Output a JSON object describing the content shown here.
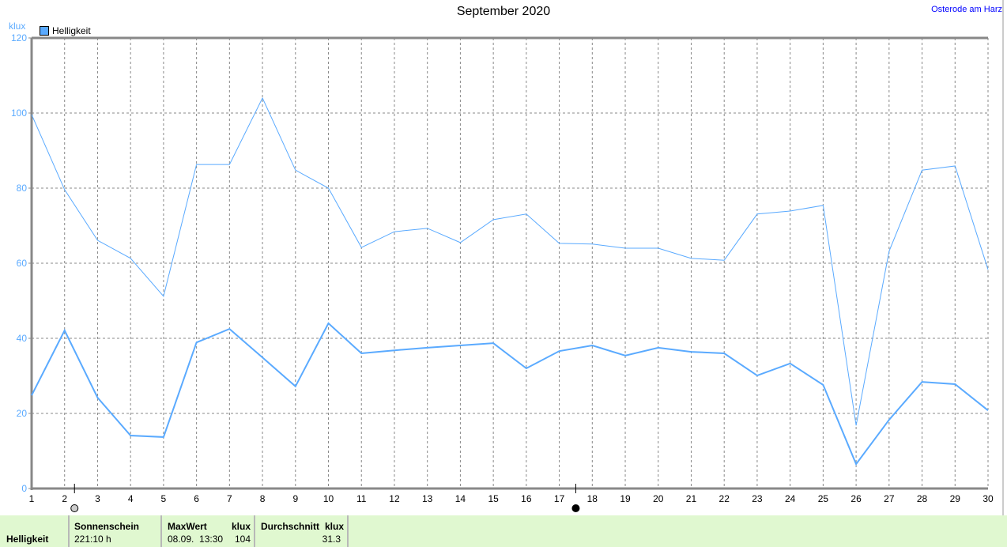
{
  "title": "September 2020",
  "location": "Osterode am Harz",
  "chart_data": {
    "type": "line",
    "title": "September 2020",
    "ylabel": "klux",
    "ylim": [
      0,
      120
    ],
    "yticks": [
      0,
      20,
      40,
      60,
      80,
      100,
      120
    ],
    "xlim": [
      1,
      30
    ],
    "x": [
      1,
      2,
      3,
      4,
      5,
      6,
      7,
      8,
      9,
      10,
      11,
      12,
      13,
      14,
      15,
      16,
      17,
      18,
      19,
      20,
      21,
      22,
      23,
      24,
      25,
      26,
      27,
      28,
      29,
      30
    ],
    "grid": true,
    "legend": {
      "position": "top-left",
      "entries": [
        "Helligkeit"
      ]
    },
    "color": "#5aaaff",
    "series": [
      {
        "name": "Helligkeit",
        "kind": "max",
        "values": [
          99.6,
          79.6,
          66.1,
          61.3,
          51.2,
          86.3,
          86.3,
          104,
          84.8,
          80,
          64.2,
          68.4,
          69.3,
          65.5,
          71.6,
          73.1,
          65.3,
          65.1,
          64,
          64,
          61.3,
          60.8,
          73.1,
          73.9,
          75.4,
          16.8,
          63.2,
          84.8,
          85.9,
          58.3
        ]
      },
      {
        "name": "Helligkeit",
        "kind": "average",
        "values": [
          24.8,
          42.1,
          24.2,
          14.1,
          13.7,
          38.9,
          42.5,
          34.9,
          27.2,
          44,
          36,
          36.8,
          37.5,
          38.1,
          38.7,
          32,
          36.6,
          38.1,
          35.4,
          37.5,
          36.4,
          36,
          30.1,
          33.3,
          27.6,
          6.5,
          18.3,
          28.4,
          27.8,
          20.8
        ]
      }
    ],
    "moon_phases": [
      {
        "day": 2.3,
        "phase": "full-moon"
      },
      {
        "day": 17.5,
        "phase": "new-moon"
      }
    ]
  },
  "legend_label": "Helligkeit",
  "unit": "klux",
  "summary": {
    "row_label": "Helligkeit",
    "sun_label": "Sonnenschein",
    "sun_value": "221:10 h",
    "max_label": "MaxWert",
    "max_unit": "klux",
    "max_date": "08.09.  13:30",
    "max_value": "104",
    "avg_label": "Durchschnitt",
    "avg_unit": "klux",
    "avg_value": "31.3"
  }
}
